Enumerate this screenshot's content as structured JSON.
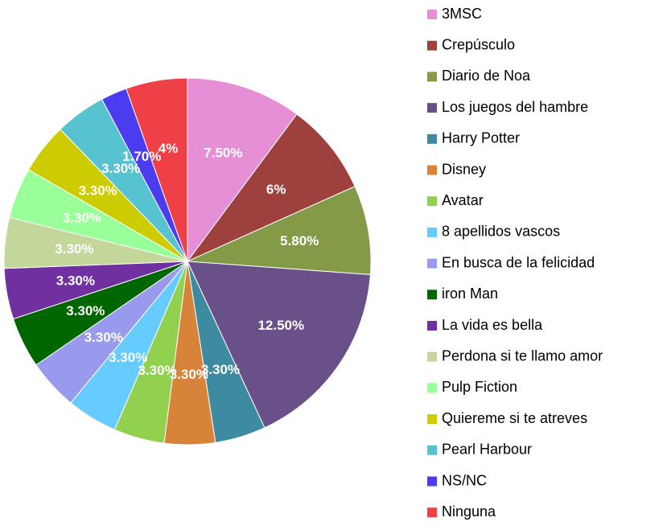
{
  "chart_data": {
    "type": "pie",
    "categories": [
      "3MSC",
      "Crepúsculo",
      "Diario de Noa",
      "Los juegos del hambre",
      "Harry Potter",
      "Disney",
      "Avatar",
      "8 apellidos vascos",
      "En busca de la felicidad",
      "iron Man",
      "La vida es bella",
      "Perdona si te llamo amor",
      "Pulp Fiction",
      "Quiereme si te atreves",
      "Pearl Harbour",
      "NS/NC",
      "Ninguna"
    ],
    "values": [
      7.5,
      6,
      5.8,
      12.5,
      3.3,
      3.3,
      3.3,
      3.3,
      3.3,
      3.3,
      3.3,
      3.3,
      3.3,
      3.3,
      3.3,
      1.7,
      4
    ],
    "value_labels": [
      "7.50%",
      "6%",
      "5.80%",
      "12.50%",
      "3.30%",
      "3.30%",
      "3.30%",
      "3.30%",
      "3.30%",
      "3.30%",
      "3.30%",
      "3.30%",
      "3.30%",
      "3.30%",
      "3.30%",
      "1.70%",
      "4%"
    ],
    "colors": [
      "#e78fd6",
      "#9e403e",
      "#839b47",
      "#6a5089",
      "#3c8ba0",
      "#d7833a",
      "#92d050",
      "#66ccff",
      "#9999ee",
      "#006600",
      "#7030a0",
      "#c4d79b",
      "#99ff99",
      "#cccc00",
      "#57c3d0",
      "#4b3cf0",
      "#ee4046"
    ],
    "legend": "right"
  }
}
